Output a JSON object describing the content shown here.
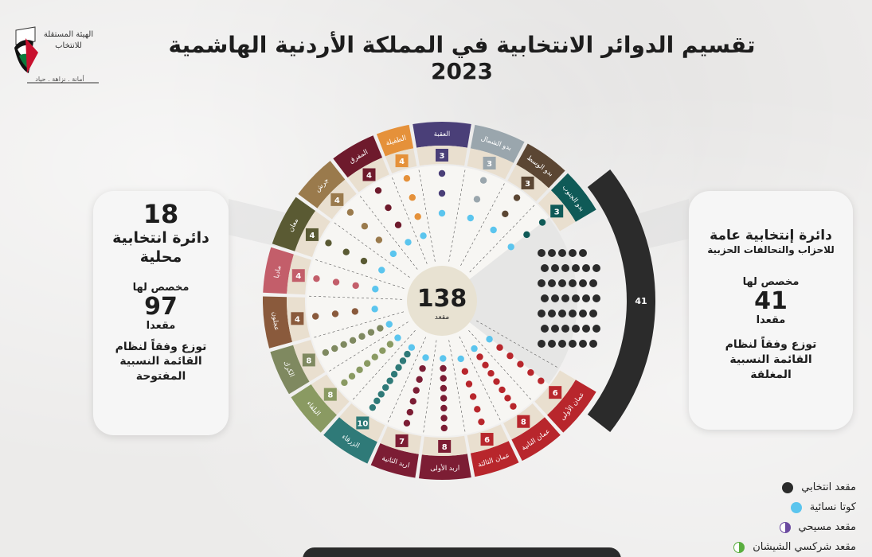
{
  "logo": {
    "line1": "الهيئة المستقلة",
    "line2": "للانتخاب",
    "motto": "أمانة . نزاهة . حياد"
  },
  "title": "تقسيم الدوائر الانتخابية في المملكة الأردنية الهاشمية 2023",
  "center": {
    "total": "138",
    "unit": "مقعد"
  },
  "left_card": {
    "count": "18",
    "label_line1": "دائرة انتخابية",
    "label_line2": "محلية",
    "allotted_label": "مخصص لها",
    "seats": "97",
    "seats_unit": "مقعدا",
    "system_line1": "توزع وفقاً لنظام",
    "system_line2": "القائمة النسبية",
    "system_line3": "المفتوحة"
  },
  "right_card": {
    "label_line1": "دائرة إنتخابية عامة",
    "label_line2": "للاحزاب والتحالفات الحزبية",
    "allotted_label": "مخصص لها",
    "seats": "41",
    "seats_unit": "مقعدا",
    "system_line1": "توزع وفقاً لنظام",
    "system_line2": "القائمة النسبية",
    "system_line3": "المغلقة"
  },
  "general_district": {
    "seats": "41",
    "color": "#2b2b2b"
  },
  "districts": [
    {
      "name": "العقبة",
      "seats": "3",
      "color": "#4a3f78"
    },
    {
      "name": "بدو الشمال",
      "seats": "3",
      "color": "#9aa6ad"
    },
    {
      "name": "بدو الوسط",
      "seats": "3",
      "color": "#5b4633"
    },
    {
      "name": "بدو الجنوب",
      "seats": "3",
      "color": "#0f5a57"
    },
    {
      "name": "عمان الأولى",
      "seats": "6",
      "color": "#b8262c"
    },
    {
      "name": "عمان الثانية",
      "seats": "8",
      "color": "#b8262c"
    },
    {
      "name": "عمان الثالثة",
      "seats": "6",
      "color": "#b8262c"
    },
    {
      "name": "اربد الأولى",
      "seats": "8",
      "color": "#7c1d34"
    },
    {
      "name": "اربد الثانية",
      "seats": "7",
      "color": "#7c1d34"
    },
    {
      "name": "الزرقاء",
      "seats": "10",
      "color": "#2f7a78"
    },
    {
      "name": "البلقاء",
      "seats": "8",
      "color": "#8a9a62"
    },
    {
      "name": "الكرك",
      "seats": "8",
      "color": "#7f8960"
    },
    {
      "name": "عجلون",
      "seats": "4",
      "color": "#8a5a3c"
    },
    {
      "name": "مادبا",
      "seats": "4",
      "color": "#c35e6a"
    },
    {
      "name": "معان",
      "seats": "4",
      "color": "#5a5a33"
    },
    {
      "name": "جرش",
      "seats": "4",
      "color": "#9a7a4c"
    },
    {
      "name": "المفرق",
      "seats": "4",
      "color": "#6e1a2c"
    },
    {
      "name": "الطفيلة",
      "seats": "4",
      "color": "#e5913a"
    }
  ],
  "legend": [
    {
      "label": "مقعد انتخابي",
      "color": "#2b2b2b",
      "icon": "filled-dot-icon"
    },
    {
      "label": "كوتا نسائية",
      "color": "#5bc5ee",
      "icon": "cyan-dot-icon"
    },
    {
      "label": "مقعد مسيحي",
      "color": "#6b4aa0",
      "icon": "half-purple-dot-icon"
    },
    {
      "label": "مقعد شركسي الشيشان",
      "color": "#5aae3f",
      "icon": "half-green-dot-icon"
    }
  ]
}
